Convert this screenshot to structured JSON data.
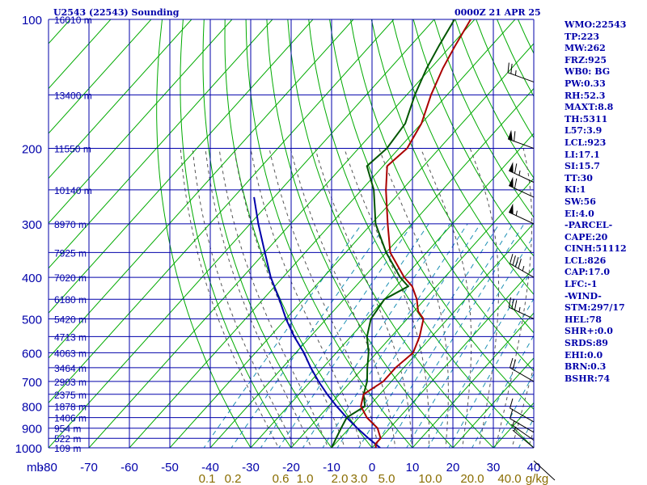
{
  "header": {
    "station": "U2543 (22543) Sounding",
    "time": "0000Z 21 APR 25"
  },
  "indices": [
    "WMO:22543",
    "TP:223",
    "MW:262",
    "FRZ:925",
    "WB0: BG",
    "PW:0.33",
    "RH:52.3",
    "MAXT:8.8",
    "TH:5311",
    "L57:3.9",
    "LCL:923",
    "LI:17.1",
    "SI:15.7",
    "TT:30",
    "KI:1",
    "SW:56",
    "EI:4.0",
    "-PARCEL-",
    "CAPE:20",
    "CINH:51112",
    "LCL:826",
    "CAP:17.0",
    "LFC:-1",
    "-WIND-",
    "STM:297/17",
    "HEL:78",
    "SHR+:0.0",
    "SRDS:89",
    "EHI:0.0",
    "BRN:0.3",
    "BSHR:74"
  ],
  "colors": {
    "grid": "#0000aa",
    "isotherm": "#00aa00",
    "dry_adiabat": "#00aa00",
    "moist_adiabat": "#555555",
    "mixing_ratio": "#1e90b4",
    "temperature": "#aa0000",
    "dewpoint": "#005500",
    "parcel": "#0000aa",
    "mixing_ratio_labels": "#8a6d00"
  },
  "chart_data": {
    "type": "skew-t log-p sounding",
    "pressure_unit": "mb",
    "pressure_levels": [
      100,
      200,
      300,
      400,
      500,
      600,
      700,
      800,
      900,
      1000
    ],
    "temperature_ticks": [
      -80,
      -70,
      -60,
      -50,
      -40,
      -30,
      -20,
      -10,
      0,
      10,
      20,
      30,
      40
    ],
    "xlim": [
      -80,
      40
    ],
    "ylim": [
      1000,
      100
    ],
    "height_labels": [
      {
        "p": 100,
        "label": "16010 m"
      },
      {
        "p": 150,
        "label": "13400 m"
      },
      {
        "p": 200,
        "label": "11550 m"
      },
      {
        "p": 250,
        "label": "10140 m"
      },
      {
        "p": 300,
        "label": "8970 m"
      },
      {
        "p": 350,
        "label": "7925 m"
      },
      {
        "p": 400,
        "label": "7020 m"
      },
      {
        "p": 450,
        "label": "6180 m"
      },
      {
        "p": 500,
        "label": "5420 m"
      },
      {
        "p": 550,
        "label": "4713 m"
      },
      {
        "p": 600,
        "label": "4063 m"
      },
      {
        "p": 650,
        "label": "3464 m"
      },
      {
        "p": 700,
        "label": "2903 m"
      },
      {
        "p": 750,
        "label": "2375 m"
      },
      {
        "p": 800,
        "label": "1878 m"
      },
      {
        "p": 850,
        "label": "1406 m"
      },
      {
        "p": 900,
        "label": "954 m"
      },
      {
        "p": 950,
        "label": "522 m"
      },
      {
        "p": 1000,
        "label": "109 m"
      }
    ],
    "mixing_ratio_labels": [
      "0.1",
      "0.2",
      "0.6",
      "1.0",
      "2.0",
      "3.0",
      "5.0",
      "10.0",
      "20.0",
      "40.0",
      "g/kg"
    ],
    "temperature_profile": [
      {
        "p": 1000,
        "t": 1
      },
      {
        "p": 980,
        "t": 0
      },
      {
        "p": 950,
        "t": 0
      },
      {
        "p": 900,
        "t": -3
      },
      {
        "p": 850,
        "t": -8
      },
      {
        "p": 800,
        "t": -12
      },
      {
        "p": 750,
        "t": -14
      },
      {
        "p": 700,
        "t": -12
      },
      {
        "p": 650,
        "t": -12
      },
      {
        "p": 600,
        "t": -11
      },
      {
        "p": 550,
        "t": -13
      },
      {
        "p": 500,
        "t": -16
      },
      {
        "p": 480,
        "t": -19
      },
      {
        "p": 450,
        "t": -22
      },
      {
        "p": 420,
        "t": -26
      },
      {
        "p": 400,
        "t": -30
      },
      {
        "p": 350,
        "t": -39
      },
      {
        "p": 300,
        "t": -46
      },
      {
        "p": 250,
        "t": -54
      },
      {
        "p": 220,
        "t": -59
      },
      {
        "p": 200,
        "t": -58
      },
      {
        "p": 175,
        "t": -60
      },
      {
        "p": 150,
        "t": -64
      },
      {
        "p": 130,
        "t": -67
      },
      {
        "p": 115,
        "t": -69
      },
      {
        "p": 100,
        "t": -71
      }
    ],
    "dewpoint_profile": [
      {
        "p": 1000,
        "t": -10
      },
      {
        "p": 950,
        "t": -11
      },
      {
        "p": 900,
        "t": -12
      },
      {
        "p": 850,
        "t": -13
      },
      {
        "p": 800,
        "t": -11
      },
      {
        "p": 750,
        "t": -14
      },
      {
        "p": 700,
        "t": -16
      },
      {
        "p": 650,
        "t": -19
      },
      {
        "p": 600,
        "t": -22
      },
      {
        "p": 550,
        "t": -26
      },
      {
        "p": 500,
        "t": -29
      },
      {
        "p": 450,
        "t": -30
      },
      {
        "p": 420,
        "t": -27
      },
      {
        "p": 400,
        "t": -31
      },
      {
        "p": 350,
        "t": -40
      },
      {
        "p": 300,
        "t": -49
      },
      {
        "p": 250,
        "t": -57
      },
      {
        "p": 220,
        "t": -64
      },
      {
        "p": 200,
        "t": -63
      },
      {
        "p": 175,
        "t": -64
      },
      {
        "p": 150,
        "t": -68
      },
      {
        "p": 130,
        "t": -71
      },
      {
        "p": 115,
        "t": -73
      },
      {
        "p": 100,
        "t": -75
      }
    ],
    "parcel_profile": [
      {
        "p": 1000,
        "t": 2
      },
      {
        "p": 950,
        "t": -3
      },
      {
        "p": 900,
        "t": -8
      },
      {
        "p": 850,
        "t": -13
      },
      {
        "p": 800,
        "t": -18
      },
      {
        "p": 750,
        "t": -23
      },
      {
        "p": 700,
        "t": -28
      },
      {
        "p": 650,
        "t": -33
      },
      {
        "p": 600,
        "t": -38
      },
      {
        "p": 550,
        "t": -44
      },
      {
        "p": 500,
        "t": -50
      },
      {
        "p": 450,
        "t": -56
      },
      {
        "p": 400,
        "t": -63
      },
      {
        "p": 350,
        "t": -70
      },
      {
        "p": 300,
        "t": -78
      },
      {
        "p": 260,
        "t": -85
      }
    ],
    "wind_barbs": [
      {
        "p": 140,
        "dir": 290,
        "kt": 25
      },
      {
        "p": 200,
        "dir": 290,
        "kt": 60
      },
      {
        "p": 240,
        "dir": 295,
        "kt": 65
      },
      {
        "p": 260,
        "dir": 295,
        "kt": 60
      },
      {
        "p": 300,
        "dir": 295,
        "kt": 55
      },
      {
        "p": 400,
        "dir": 300,
        "kt": 45
      },
      {
        "p": 500,
        "dir": 295,
        "kt": 35
      },
      {
        "p": 700,
        "dir": 300,
        "kt": 20
      },
      {
        "p": 870,
        "dir": 300,
        "kt": 10
      },
      {
        "p": 920,
        "dir": 300,
        "kt": 10
      },
      {
        "p": 960,
        "dir": 305,
        "kt": 5
      },
      {
        "p": 1000,
        "dir": 310,
        "kt": 5
      }
    ]
  }
}
